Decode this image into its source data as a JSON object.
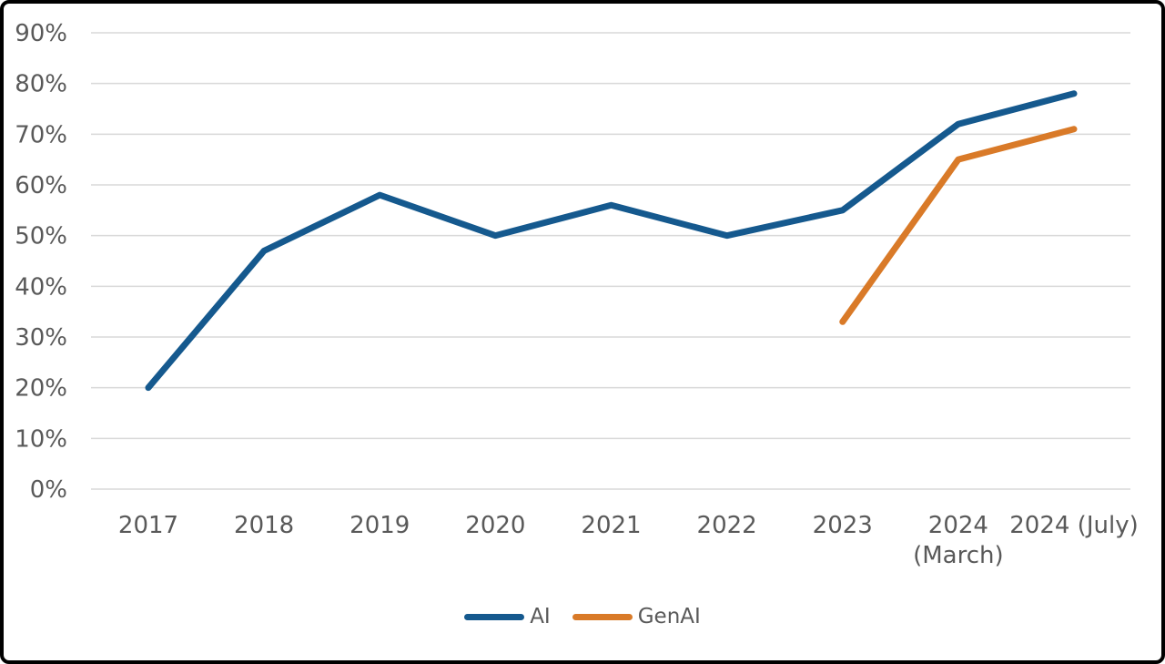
{
  "chart_data": {
    "type": "line",
    "title": "",
    "xlabel": "",
    "ylabel": "",
    "categories": [
      "2017",
      "2018",
      "2019",
      "2020",
      "2021",
      "2022",
      "2023",
      "2024 (March)",
      "2024 (July)"
    ],
    "x_tick_lines": [
      [
        "2017"
      ],
      [
        "2018"
      ],
      [
        "2019"
      ],
      [
        "2020"
      ],
      [
        "2021"
      ],
      [
        "2022"
      ],
      [
        "2023"
      ],
      [
        "2024",
        "(March)"
      ],
      [
        "2024 (July)"
      ]
    ],
    "series": [
      {
        "name": "AI",
        "color": "#15598E",
        "values": [
          20,
          47,
          58,
          50,
          56,
          50,
          55,
          72,
          78
        ]
      },
      {
        "name": "GenAI",
        "color": "#D97A28",
        "values": [
          null,
          null,
          null,
          null,
          null,
          null,
          33,
          65,
          71
        ]
      }
    ],
    "ylim": [
      0,
      90
    ],
    "y_tick_step": 10,
    "y_ticks": [
      "0%",
      "10%",
      "20%",
      "30%",
      "40%",
      "50%",
      "60%",
      "70%",
      "80%",
      "90%"
    ],
    "grid": "horizontal-only",
    "legend_position": "bottom-center",
    "values_unit": "%"
  },
  "colors": {
    "background": "#FFFFFF",
    "frame_border": "#000000",
    "gridline": "#D9D9D9",
    "tick_label": "#595959",
    "legend_label": "#595959"
  }
}
